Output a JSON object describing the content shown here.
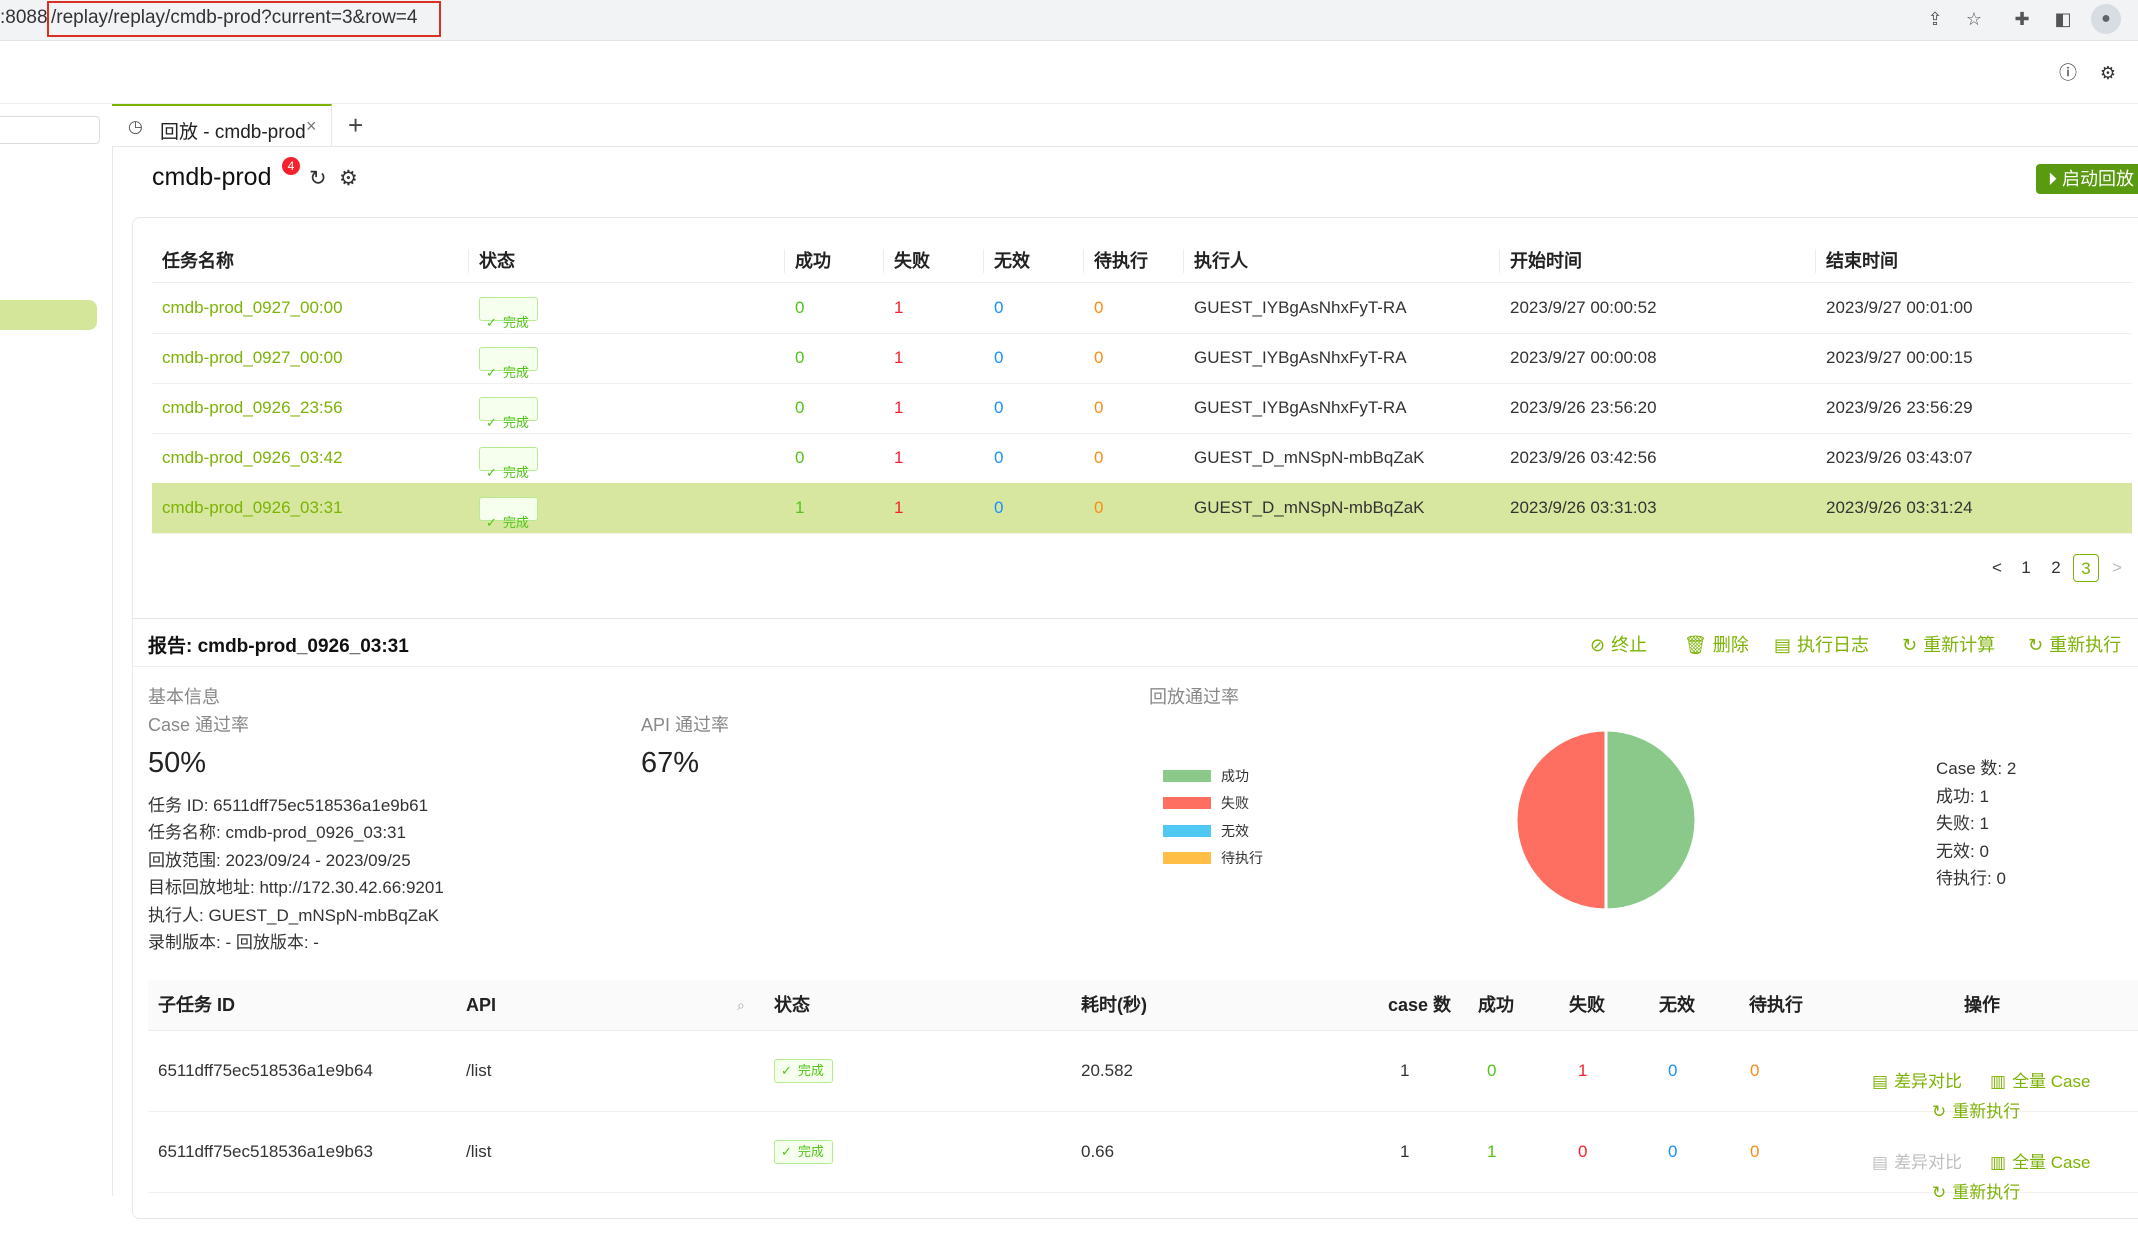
{
  "browser": {
    "url_prefix": ":8088",
    "url_path": "/replay/replay/cmdb-prod?current=3&row=4"
  },
  "tab": {
    "label": "回放 - cmdb-prod",
    "add": "+"
  },
  "app": {
    "title": "cmdb-prod",
    "badge": "4",
    "start_button": "启动回放"
  },
  "task_table": {
    "headers": [
      "任务名称",
      "状态",
      "成功",
      "失败",
      "无效",
      "待执行",
      "执行人",
      "开始时间",
      "结束时间"
    ],
    "rows": [
      {
        "name": "cmdb-prod_0927_00:00",
        "status": "完成",
        "success": "0",
        "fail": "1",
        "invalid": "0",
        "pending": "0",
        "executor": "GUEST_IYBgAsNhxFyT-RA",
        "start": "2023/9/27 00:00:52",
        "end": "2023/9/27 00:01:00"
      },
      {
        "name": "cmdb-prod_0927_00:00",
        "status": "完成",
        "success": "0",
        "fail": "1",
        "invalid": "0",
        "pending": "0",
        "executor": "GUEST_IYBgAsNhxFyT-RA",
        "start": "2023/9/27 00:00:08",
        "end": "2023/9/27 00:00:15"
      },
      {
        "name": "cmdb-prod_0926_23:56",
        "status": "完成",
        "success": "0",
        "fail": "1",
        "invalid": "0",
        "pending": "0",
        "executor": "GUEST_IYBgAsNhxFyT-RA",
        "start": "2023/9/26 23:56:20",
        "end": "2023/9/26 23:56:29"
      },
      {
        "name": "cmdb-prod_0926_03:42",
        "status": "完成",
        "success": "0",
        "fail": "1",
        "invalid": "0",
        "pending": "0",
        "executor": "GUEST_D_mNSpN-mbBqZaK",
        "start": "2023/9/26 03:42:56",
        "end": "2023/9/26 03:43:07"
      },
      {
        "name": "cmdb-prod_0926_03:31",
        "status": "完成",
        "success": "1",
        "fail": "1",
        "invalid": "0",
        "pending": "0",
        "executor": "GUEST_D_mNSpN-mbBqZaK",
        "start": "2023/9/26 03:31:03",
        "end": "2023/9/26 03:31:24"
      }
    ]
  },
  "pagination": {
    "prev": "<",
    "pages": [
      "1",
      "2",
      "3"
    ],
    "current": "3",
    "next": ">"
  },
  "report": {
    "title": "报告: cmdb-prod_0926_03:31",
    "actions": [
      "终止",
      "删除",
      "执行日志",
      "重新计算",
      "重新执行"
    ],
    "basic_info_label": "基本信息",
    "case_pass_label": "Case 通过率",
    "case_pass_value": "50%",
    "api_pass_label": "API 通过率",
    "api_pass_value": "67%",
    "info_lines": [
      "任务 ID: 6511dff75ec518536a1e9b61",
      "任务名称: cmdb-prod_0926_03:31",
      "回放范围: 2023/09/24 - 2023/09/25",
      "目标回放地址: http://172.30.42.66:9201",
      "执行人: GUEST_D_mNSpN-mbBqZaK",
      "录制版本: - 回放版本: -"
    ],
    "chart_label": "回放通过率",
    "legend": [
      {
        "label": "成功",
        "color": "#8bc98a"
      },
      {
        "label": "失败",
        "color": "#ff6f61"
      },
      {
        "label": "无效",
        "color": "#4fc8f3"
      },
      {
        "label": "待执行",
        "color": "#ffbf47"
      }
    ],
    "stats": [
      "Case 数: 2",
      "成功: 1",
      "失败: 1",
      "无效: 0",
      "待执行: 0"
    ]
  },
  "chart_data": {
    "type": "pie",
    "title": "回放通过率",
    "categories": [
      "成功",
      "失败",
      "无效",
      "待执行"
    ],
    "values": [
      1,
      1,
      0,
      0
    ],
    "colors": [
      "#8bc98a",
      "#ff6f61",
      "#4fc8f3",
      "#ffbf47"
    ]
  },
  "subtask_table": {
    "headers": [
      "子任务 ID",
      "API",
      "状态",
      "耗时(秒)",
      "case 数",
      "成功",
      "失败",
      "无效",
      "待执行",
      "操作"
    ],
    "rows": [
      {
        "id": "6511dff75ec518536a1e9b64",
        "api": "/list",
        "status": "完成",
        "duration": "20.582",
        "cases": "1",
        "success": "0",
        "fail": "1",
        "invalid": "0",
        "pending": "0"
      },
      {
        "id": "6511dff75ec518536a1e9b63",
        "api": "/list",
        "status": "完成",
        "duration": "0.66",
        "cases": "1",
        "success": "1",
        "fail": "0",
        "invalid": "0",
        "pending": "0"
      }
    ],
    "ops": {
      "diff": "差异对比",
      "all_case": "全量 Case",
      "rerun": "重新执行"
    }
  }
}
